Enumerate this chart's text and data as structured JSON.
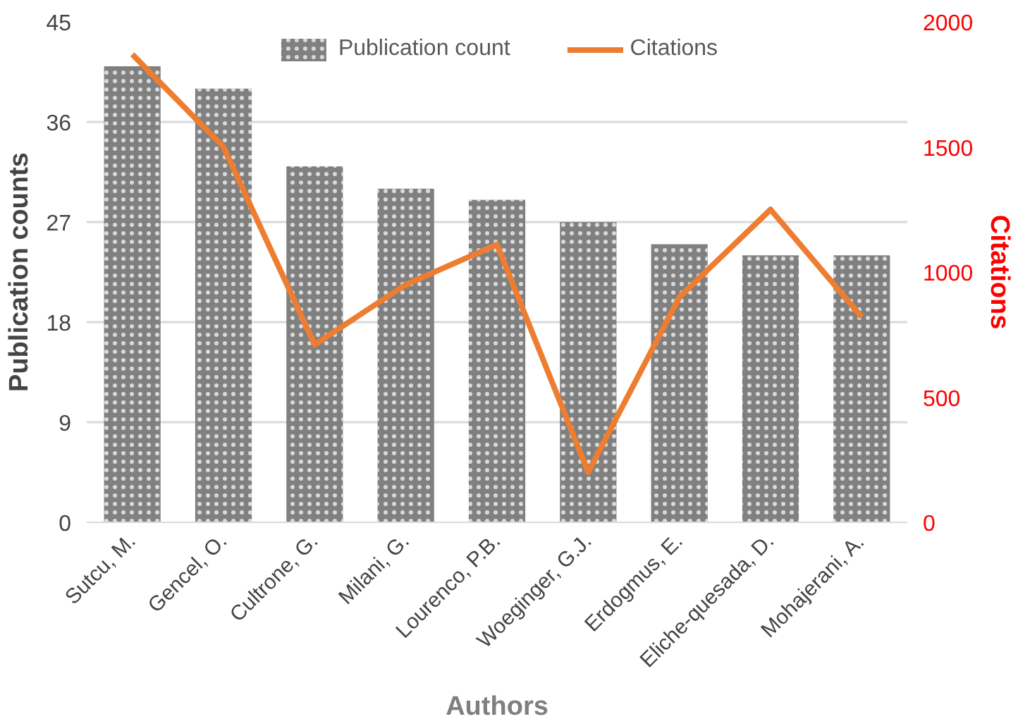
{
  "chart_data": {
    "type": "bar",
    "xlabel": "Authors",
    "ylabel": "Publication counts",
    "y2label": "Citations",
    "categories": [
      "Sutcu, M.",
      "Gencel, O.",
      "Cultrone, G.",
      "Milani, G.",
      "Lourenco, P.B.",
      "Woeginger, G.J.",
      "Erdogmus, E.",
      "Eliche-quesada, D.",
      "Mohajerani, A."
    ],
    "series": [
      {
        "name": "Publication count",
        "color": "#808080",
        "values": [
          41,
          39,
          32,
          30,
          29,
          27,
          25,
          24,
          24
        ]
      },
      {
        "name": "Citations",
        "type": "line",
        "axis": "y2",
        "color": "#ed7d31",
        "values": [
          1870,
          1500,
          710,
          950,
          1110,
          200,
          900,
          1250,
          820
        ]
      }
    ],
    "ylim": [
      0,
      45
    ],
    "yticks": [
      0,
      9,
      18,
      27,
      36,
      45
    ],
    "y2lim": [
      0,
      2000
    ],
    "y2ticks": [
      0,
      500,
      1000,
      1500,
      2000
    ],
    "grid": "y",
    "legend": "top",
    "marker": "none",
    "line_style": "solid"
  }
}
